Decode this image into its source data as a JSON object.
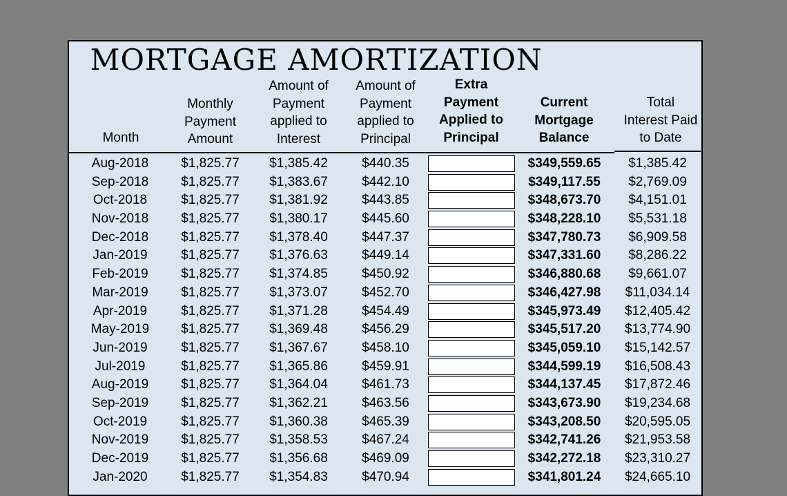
{
  "title": "MORTGAGE AMORTIZATION",
  "headers": {
    "month": "Month",
    "monthly_payment": [
      "Monthly",
      "Payment",
      "Amount"
    ],
    "interest": [
      "Amount of",
      "Payment",
      "applied to",
      "Interest"
    ],
    "principal": [
      "Amount of",
      "Payment",
      "applied to",
      "Principal"
    ],
    "extra": [
      "Extra",
      "Payment",
      "Applied to",
      "Principal"
    ],
    "balance": [
      "Current",
      "Mortgage",
      "Balance"
    ],
    "total_interest": [
      "Total",
      "Interest Paid",
      "to Date"
    ]
  },
  "rows": [
    {
      "month": "Aug-2018",
      "payment": "$1,825.77",
      "interest": "$1,385.42",
      "principal": "$440.35",
      "balance": "$349,559.65",
      "total_interest": "$1,385.42"
    },
    {
      "month": "Sep-2018",
      "payment": "$1,825.77",
      "interest": "$1,383.67",
      "principal": "$442.10",
      "balance": "$349,117.55",
      "total_interest": "$2,769.09"
    },
    {
      "month": "Oct-2018",
      "payment": "$1,825.77",
      "interest": "$1,381.92",
      "principal": "$443.85",
      "balance": "$348,673.70",
      "total_interest": "$4,151.01"
    },
    {
      "month": "Nov-2018",
      "payment": "$1,825.77",
      "interest": "$1,380.17",
      "principal": "$445.60",
      "balance": "$348,228.10",
      "total_interest": "$5,531.18"
    },
    {
      "month": "Dec-2018",
      "payment": "$1,825.77",
      "interest": "$1,378.40",
      "principal": "$447.37",
      "balance": "$347,780.73",
      "total_interest": "$6,909.58"
    },
    {
      "month": "Jan-2019",
      "payment": "$1,825.77",
      "interest": "$1,376.63",
      "principal": "$449.14",
      "balance": "$347,331.60",
      "total_interest": "$8,286.22"
    },
    {
      "month": "Feb-2019",
      "payment": "$1,825.77",
      "interest": "$1,374.85",
      "principal": "$450.92",
      "balance": "$346,880.68",
      "total_interest": "$9,661.07"
    },
    {
      "month": "Mar-2019",
      "payment": "$1,825.77",
      "interest": "$1,373.07",
      "principal": "$452.70",
      "balance": "$346,427.98",
      "total_interest": "$11,034.14"
    },
    {
      "month": "Apr-2019",
      "payment": "$1,825.77",
      "interest": "$1,371.28",
      "principal": "$454.49",
      "balance": "$345,973.49",
      "total_interest": "$12,405.42"
    },
    {
      "month": "May-2019",
      "payment": "$1,825.77",
      "interest": "$1,369.48",
      "principal": "$456.29",
      "balance": "$345,517.20",
      "total_interest": "$13,774.90"
    },
    {
      "month": "Jun-2019",
      "payment": "$1,825.77",
      "interest": "$1,367.67",
      "principal": "$458.10",
      "balance": "$345,059.10",
      "total_interest": "$15,142.57"
    },
    {
      "month": "Jul-2019",
      "payment": "$1,825.77",
      "interest": "$1,365.86",
      "principal": "$459.91",
      "balance": "$344,599.19",
      "total_interest": "$16,508.43"
    },
    {
      "month": "Aug-2019",
      "payment": "$1,825.77",
      "interest": "$1,364.04",
      "principal": "$461.73",
      "balance": "$344,137.45",
      "total_interest": "$17,872.46"
    },
    {
      "month": "Sep-2019",
      "payment": "$1,825.77",
      "interest": "$1,362.21",
      "principal": "$463.56",
      "balance": "$343,673.90",
      "total_interest": "$19,234.68"
    },
    {
      "month": "Oct-2019",
      "payment": "$1,825.77",
      "interest": "$1,360.38",
      "principal": "$465.39",
      "balance": "$343,208.50",
      "total_interest": "$20,595.05"
    },
    {
      "month": "Nov-2019",
      "payment": "$1,825.77",
      "interest": "$1,358.53",
      "principal": "$467.24",
      "balance": "$342,741.26",
      "total_interest": "$21,953.58"
    },
    {
      "month": "Dec-2019",
      "payment": "$1,825.77",
      "interest": "$1,356.68",
      "principal": "$469.09",
      "balance": "$342,272.18",
      "total_interest": "$23,310.27"
    },
    {
      "month": "Jan-2020",
      "payment": "$1,825.77",
      "interest": "$1,354.83",
      "principal": "$470.94",
      "balance": "$341,801.24",
      "total_interest": "$24,665.10"
    }
  ]
}
